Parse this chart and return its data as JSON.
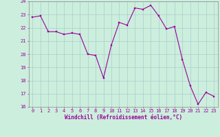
{
  "x_vals": [
    0,
    1,
    2,
    3,
    4,
    5,
    6,
    7,
    8,
    9,
    10,
    11,
    12,
    13,
    14,
    15,
    16,
    17,
    18,
    19,
    20,
    21,
    22,
    23
  ],
  "y_vals": [
    22.8,
    22.9,
    21.7,
    21.7,
    21.5,
    21.6,
    21.5,
    20.0,
    19.9,
    18.2,
    20.7,
    22.4,
    22.2,
    23.5,
    23.4,
    23.7,
    22.9,
    21.9,
    22.1,
    19.6,
    17.6,
    16.2,
    17.1,
    16.8
  ],
  "line_color": "#990099",
  "marker_color": "#990099",
  "bg_color": "#cceedd",
  "grid_color": "#aacccc",
  "xlabel": "Windchill (Refroidissement éolien,°C)",
  "ylim": [
    16,
    24
  ],
  "xlim_min": -0.5,
  "xlim_max": 23.5,
  "yticks": [
    16,
    17,
    18,
    19,
    20,
    21,
    22,
    23,
    24
  ],
  "xticks": [
    0,
    1,
    2,
    3,
    4,
    5,
    6,
    7,
    8,
    9,
    10,
    11,
    12,
    13,
    14,
    15,
    16,
    17,
    18,
    19,
    20,
    21,
    22,
    23
  ],
  "tick_color": "#990099",
  "tick_fontsize": 5.0,
  "xlabel_fontsize": 5.5,
  "line_width": 0.8,
  "marker_size": 2.0
}
